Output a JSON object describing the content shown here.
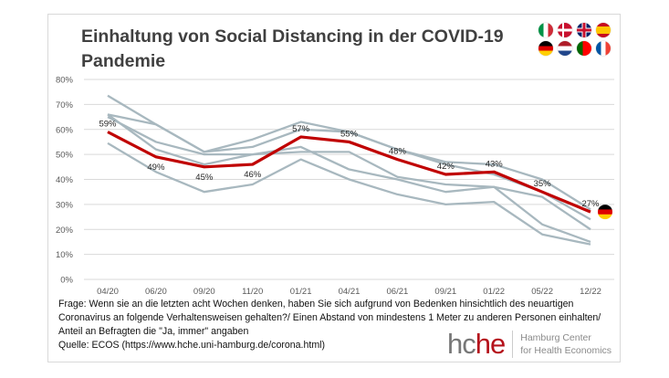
{
  "title": "Einhaltung von Social Distancing in der COVID-19 Pandemie",
  "flags": [
    {
      "name": "italy",
      "colors": [
        "#009246",
        "#ffffff",
        "#ce2b37"
      ],
      "dir": "v"
    },
    {
      "name": "denmark",
      "colors": [
        "#c8102e",
        "#ffffff"
      ],
      "dir": "cross"
    },
    {
      "name": "uk",
      "colors": [
        "#012169",
        "#ffffff",
        "#c8102e"
      ],
      "dir": "uk"
    },
    {
      "name": "spain",
      "colors": [
        "#c60b1e",
        "#ffc400",
        "#c60b1e"
      ],
      "dir": "es"
    },
    {
      "name": "germany",
      "colors": [
        "#000000",
        "#dd0000",
        "#ffce00"
      ],
      "dir": "h"
    },
    {
      "name": "netherlands",
      "colors": [
        "#ae1c28",
        "#ffffff",
        "#21468b"
      ],
      "dir": "h"
    },
    {
      "name": "portugal",
      "colors": [
        "#006600",
        "#ff0000"
      ],
      "dir": "pt"
    },
    {
      "name": "france",
      "colors": [
        "#0055a4",
        "#ffffff",
        "#ef4135"
      ],
      "dir": "v"
    }
  ],
  "chart_data": {
    "type": "line",
    "title": "Einhaltung von Social Distancing in der COVID-19 Pandemie",
    "categories": [
      "04/20",
      "06/20",
      "09/20",
      "11/20",
      "01/21",
      "04/21",
      "06/21",
      "09/21",
      "01/22",
      "05/22",
      "12/22"
    ],
    "ylim": [
      0,
      80
    ],
    "yticks": [
      "0%",
      "10%",
      "20%",
      "30%",
      "40%",
      "50%",
      "60%",
      "70%",
      "80%"
    ],
    "grid": true,
    "highlight": {
      "name": "Germany",
      "color": "#c00000",
      "values": [
        59,
        49,
        45,
        46,
        57,
        55,
        48,
        42,
        43,
        35,
        27
      ],
      "labels": [
        "59%",
        "49%",
        "45%",
        "46%",
        "57%",
        "55%",
        "48%",
        "42%",
        "43%",
        "35%",
        "27%"
      ]
    },
    "series": [
      {
        "name": "country-1",
        "color": "#a8b8bf",
        "values": [
          73.5,
          62,
          51,
          56,
          63,
          59,
          52,
          47,
          46,
          40,
          28
        ]
      },
      {
        "name": "country-2",
        "color": "#a8b8bf",
        "values": [
          66,
          62,
          51,
          53,
          60,
          59,
          52,
          46,
          42,
          35,
          24
        ]
      },
      {
        "name": "country-3",
        "color": "#a8b8bf",
        "values": [
          65,
          55,
          50,
          50,
          51,
          51,
          41,
          38,
          37,
          33,
          20
        ]
      },
      {
        "name": "country-4",
        "color": "#a8b8bf",
        "values": [
          66,
          52,
          46,
          50,
          53,
          44,
          40,
          35,
          37,
          22,
          15
        ]
      },
      {
        "name": "country-5",
        "color": "#a8b8bf",
        "values": [
          54.5,
          43,
          35,
          38,
          48,
          40,
          34,
          30,
          31,
          18,
          14
        ]
      }
    ]
  },
  "footer": {
    "line1": "Frage: Wenn sie an die letzten acht Wochen denken, haben Sie sich aufgrund von Bedenken hinsichtlich des neuartigen",
    "line2": "Coronavirus an folgende Verhaltensweisen gehalten?/ Einen Abstand von mindestens 1 Meter zu anderen Personen einhalten/",
    "line3": "Anteil an Befragten die \"Ja, immer\" angaben",
    "line4": "Quelle: ECOS (https://www.hche.uni-hamburg.de/corona.html)"
  },
  "logo": {
    "h": "hc",
    "he": "he",
    "sub1": "Hamburg Center",
    "sub2": "for Health Economics"
  }
}
